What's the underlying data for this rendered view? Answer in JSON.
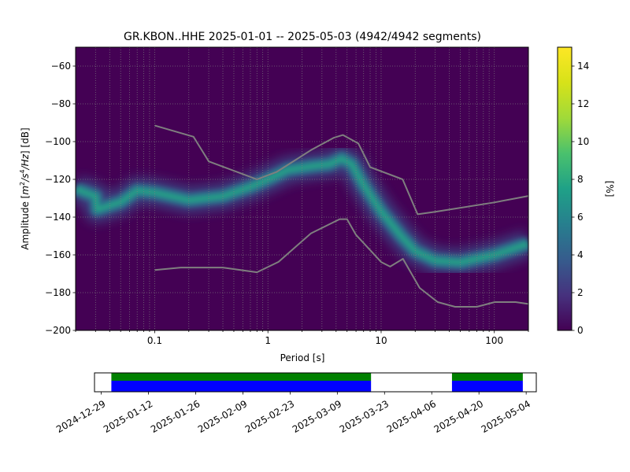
{
  "title": "GR.KBON..HHE   2025-01-01 -- 2025-05-03  (4942/4942 segments)",
  "colors": {
    "noise_model": "#7f7f7f",
    "coverage_data": "#0000ff",
    "coverage_gaps": "#008000",
    "grid": "#808080"
  },
  "chart_data": [
    {
      "type": "heatmap",
      "title": "GR.KBON..HHE   2025-01-01 -- 2025-05-03  (4942/4942 segments)",
      "xlabel": "Period [s]",
      "ylabel": "Amplitude [m²/s⁴/Hz] [dB]",
      "x_scale": "log",
      "xlim": [
        0.02,
        200
      ],
      "ylim": [
        -200,
        -50
      ],
      "x_ticks": [
        0.1,
        1,
        10,
        100
      ],
      "x_tick_labels": [
        "0.1",
        "1",
        "10",
        "100"
      ],
      "y_ticks": [
        -200,
        -180,
        -160,
        -140,
        -120,
        -100,
        -80,
        -60
      ],
      "y_tick_labels": [
        "−200",
        "−180",
        "−160",
        "−140",
        "−120",
        "−100",
        "−80",
        "−60"
      ],
      "grid": true,
      "colorbar": {
        "label": "[%]",
        "range": [
          0,
          15
        ],
        "ticks": [
          0,
          2,
          4,
          6,
          8,
          10,
          12,
          14
        ],
        "colormap": "viridis"
      },
      "mode_curve": {
        "name": "",
        "x": [
          0.02,
          0.03,
          0.031,
          0.05,
          0.07,
          0.1,
          0.2,
          0.4,
          0.7,
          1.0,
          1.5,
          2.5,
          3.5,
          4.5,
          5.5,
          7,
          10,
          15,
          20,
          30,
          50,
          100,
          200
        ],
        "y": [
          -125,
          -129,
          -136,
          -132,
          -126,
          -127,
          -131,
          -129,
          -124,
          -120,
          -115,
          -113,
          -112,
          -109,
          -112,
          -123,
          -137,
          -150,
          -158,
          -163,
          -164,
          -160,
          -154
        ]
      },
      "noise_models": [
        {
          "name": "",
          "x": [
            0.1,
            0.22,
            0.3,
            0.8,
            1.2,
            2.4,
            3.8,
            4.6,
            6.3,
            8,
            15.5,
            21,
            30,
            100,
            200
          ],
          "y": [
            -91.5,
            -97.4,
            -110.5,
            -120,
            -116,
            -104.5,
            -98,
            -96.5,
            -101,
            -113.5,
            -120,
            -138.5,
            -137.2,
            -132.2,
            -128.8
          ]
        },
        {
          "name": "",
          "x": [
            0.1,
            0.17,
            0.4,
            0.8,
            1.24,
            2.4,
            4.3,
            5.0,
            6.0,
            10,
            12,
            15.6,
            21.9,
            31.6,
            45,
            70,
            101,
            154,
            200
          ],
          "y": [
            -168,
            -166.7,
            -166.7,
            -169.2,
            -163.7,
            -148.6,
            -141.1,
            -141.1,
            -149.4,
            -163.8,
            -166.2,
            -162.1,
            -177.5,
            -185,
            -187.5,
            -187.5,
            -185,
            -185,
            -186
          ]
        }
      ]
    },
    {
      "type": "bar",
      "title": "",
      "x_tick_labels": [
        "2024-12-29",
        "2025-01-12",
        "2025-01-26",
        "2025-02-09",
        "2025-02-23",
        "2025-03-09",
        "2025-03-23",
        "2025-04-06",
        "2025-04-20",
        "2025-05-04"
      ],
      "xlim": [
        "2024-12-27",
        "2025-05-07"
      ],
      "series": [
        {
          "name": "",
          "color": "#008000",
          "intervals": [
            [
              "2025-01-01",
              "2025-03-19"
            ],
            [
              "2025-04-12",
              "2025-05-03"
            ]
          ]
        },
        {
          "name": "",
          "color": "#0000ff",
          "intervals": [
            [
              "2025-01-01",
              "2025-03-19"
            ],
            [
              "2025-04-12",
              "2025-05-03"
            ]
          ]
        }
      ]
    }
  ]
}
